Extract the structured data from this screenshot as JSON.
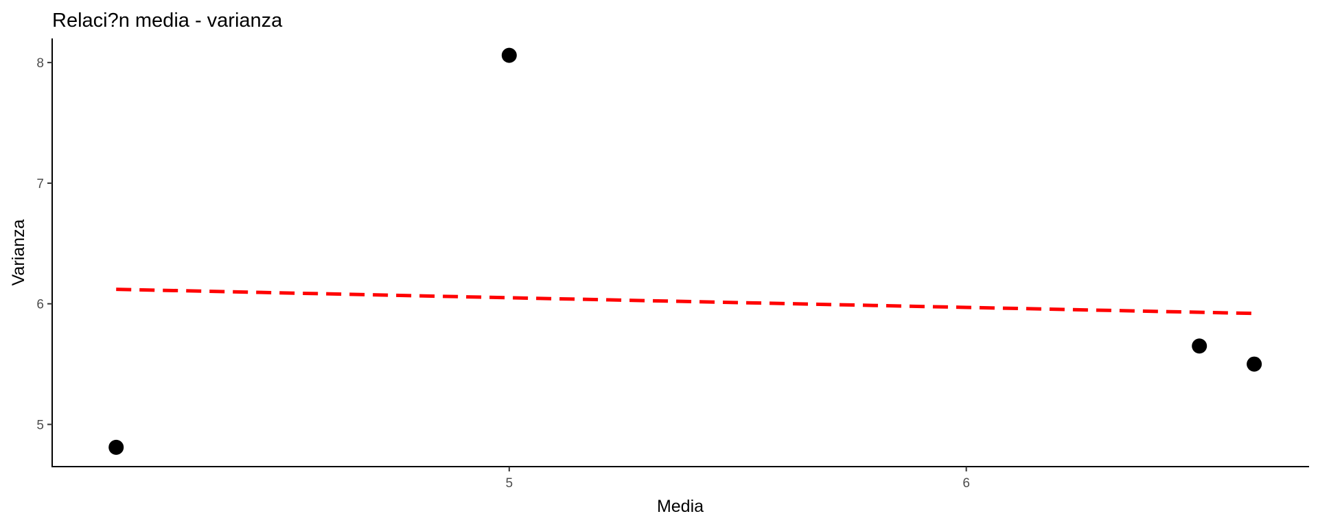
{
  "chart_data": {
    "type": "scatter",
    "title": "Relaci?n media - varianza",
    "xlabel": "Media",
    "ylabel": "Varianza",
    "xlim": [
      4.0,
      6.75
    ],
    "ylim": [
      4.65,
      8.2
    ],
    "x_ticks": [
      5,
      6
    ],
    "y_ticks": [
      5,
      6,
      7,
      8
    ],
    "grid": false,
    "points": [
      {
        "x": 4.14,
        "y": 4.81
      },
      {
        "x": 5.0,
        "y": 8.06
      },
      {
        "x": 6.51,
        "y": 5.65
      },
      {
        "x": 6.63,
        "y": 5.5
      }
    ],
    "trend_line": {
      "style": "dashed",
      "color": "#ff0000",
      "points": [
        {
          "x": 4.14,
          "y": 6.12
        },
        {
          "x": 5.0,
          "y": 6.05
        },
        {
          "x": 6.0,
          "y": 5.97
        },
        {
          "x": 6.63,
          "y": 5.92
        }
      ]
    }
  }
}
